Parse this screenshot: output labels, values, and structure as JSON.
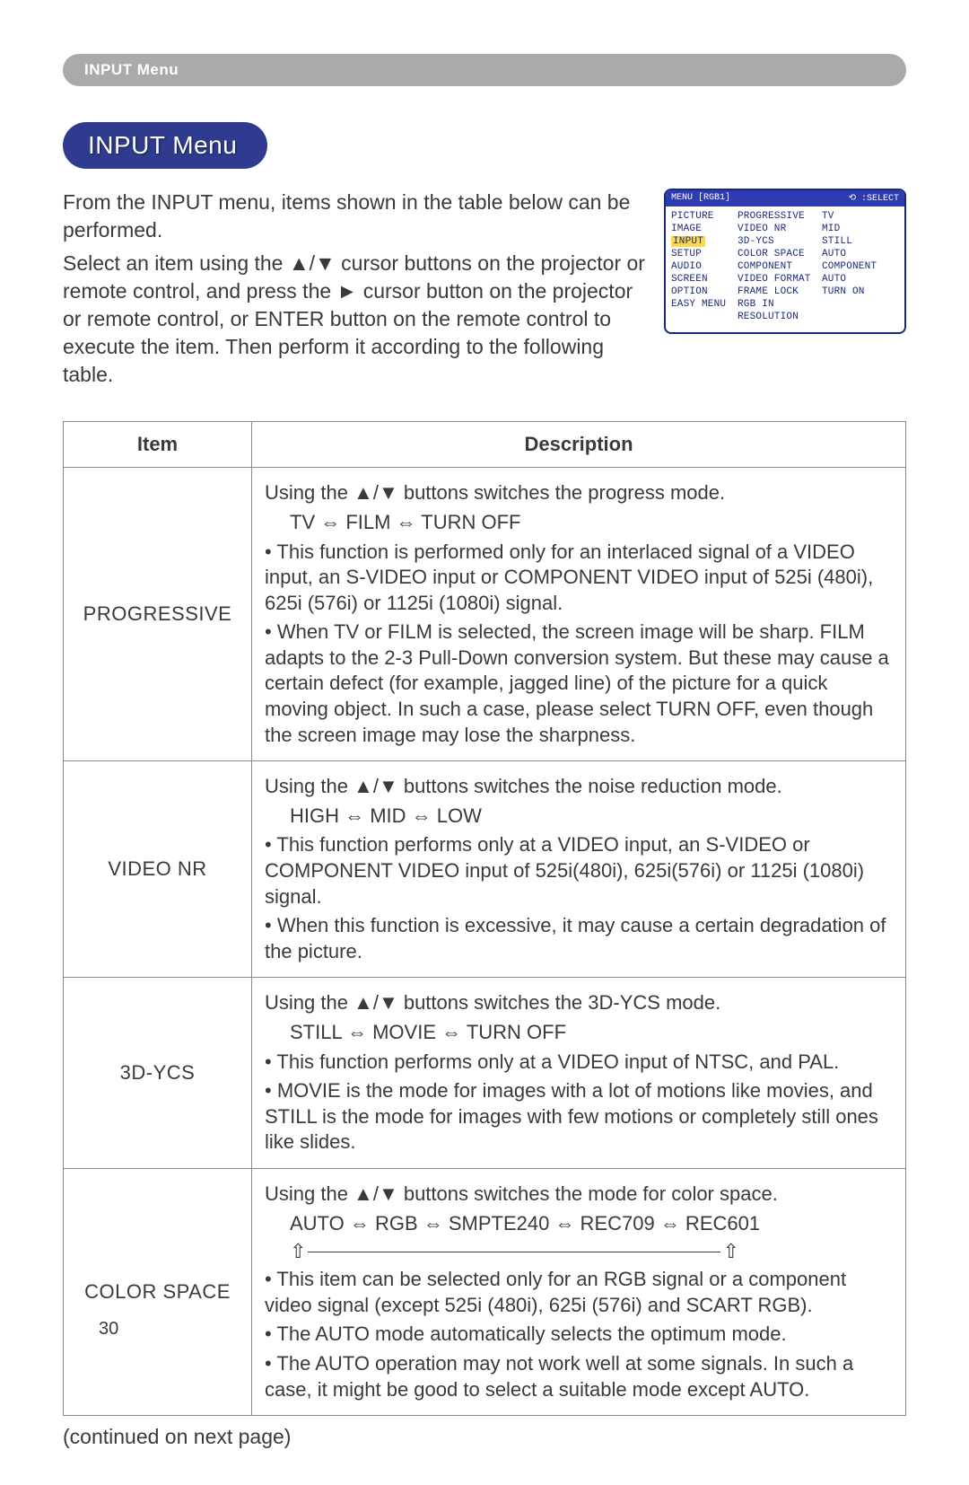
{
  "header_label": "INPUT Menu",
  "title": "INPUT Menu",
  "intro": {
    "p1": "From the INPUT menu, items shown in the table below can be performed.",
    "p2": "Select an item using the ▲/▼ cursor buttons on the projector or remote control, and press the ► cursor button on the projector or remote control, or ENTER button on the remote control to execute the item. Then perform it according to the following table."
  },
  "osd": {
    "top_left": "MENU [RGB1]",
    "top_right_icon": "⟲",
    "top_right": ":SELECT",
    "col1": [
      "PICTURE",
      "IMAGE",
      "INPUT",
      "SETUP",
      "AUDIO",
      "SCREEN",
      "OPTION",
      "EASY MENU"
    ],
    "highlight_index": 2,
    "col2": [
      "PROGRESSIVE",
      "VIDEO NR",
      "3D-YCS",
      "COLOR SPACE",
      "COMPONENT",
      "VIDEO FORMAT",
      "FRAME LOCK",
      "RGB IN",
      "RESOLUTION"
    ],
    "col3": [
      "TV",
      "MID",
      "STILL",
      "AUTO",
      "COMPONENT",
      "AUTO",
      "TURN ON",
      "",
      ""
    ]
  },
  "table": {
    "headers": {
      "item": "Item",
      "desc": "Description"
    },
    "rows": [
      {
        "item": "PROGRESSIVE",
        "desc_lines": [
          "Using the ▲/▼ buttons switches the progress mode.",
          "TV ⇔ FILM ⇔ TURN OFF",
          "• This function is performed only for an interlaced signal of a VIDEO input, an S-VIDEO input or COMPONENT VIDEO input of 525i (480i), 625i (576i) or 1125i (1080i) signal.",
          "• When TV or FILM is selected, the screen image will be sharp. FILM adapts to the 2-3 Pull-Down conversion system. But these may cause a certain defect (for example, jagged line) of the picture for a quick moving object. In such a case, please select TURN OFF, even though the screen image may lose the sharpness."
        ],
        "indent_indices": [
          1
        ]
      },
      {
        "item": "VIDEO NR",
        "desc_lines": [
          "Using the ▲/▼ buttons switches the noise reduction mode.",
          "HIGH ⇔ MID ⇔ LOW",
          "• This function performs only at a VIDEO input, an S-VIDEO or COMPONENT VIDEO input of 525i(480i), 625i(576i) or 1125i (1080i) signal.",
          "• When this function is excessive, it may cause a certain degradation of the picture."
        ],
        "indent_indices": [
          1
        ]
      },
      {
        "item": "3D-YCS",
        "desc_lines": [
          "Using the ▲/▼ buttons switches the 3D-YCS mode.",
          "STILL ⇔ MOVIE ⇔ TURN OFF",
          "• This function performs only at a VIDEO input of NTSC, and PAL.",
          "• MOVIE is the mode for images with a lot of motions like movies, and STILL is the mode for images with few motions or completely still ones like slides."
        ],
        "indent_indices": [
          1
        ]
      },
      {
        "item": "COLOR SPACE",
        "desc_lines": [
          "Using the ▲/▼ buttons switches the mode for color space.",
          "AUTO ⇔ RGB ⇔ SMPTE240 ⇔ REC709 ⇔ REC601",
          "ARROW_LINE",
          "• This item can be selected only for an RGB signal or a component video signal (except 525i (480i), 625i (576i) and SCART RGB).",
          "• The AUTO mode automatically selects the optimum mode.",
          "• The AUTO operation may not work well at some signals. In such a case, it might be good to select a suitable mode except AUTO."
        ],
        "indent_indices": [
          1
        ]
      }
    ]
  },
  "continued": "(continued on next page)",
  "page_number": "30"
}
